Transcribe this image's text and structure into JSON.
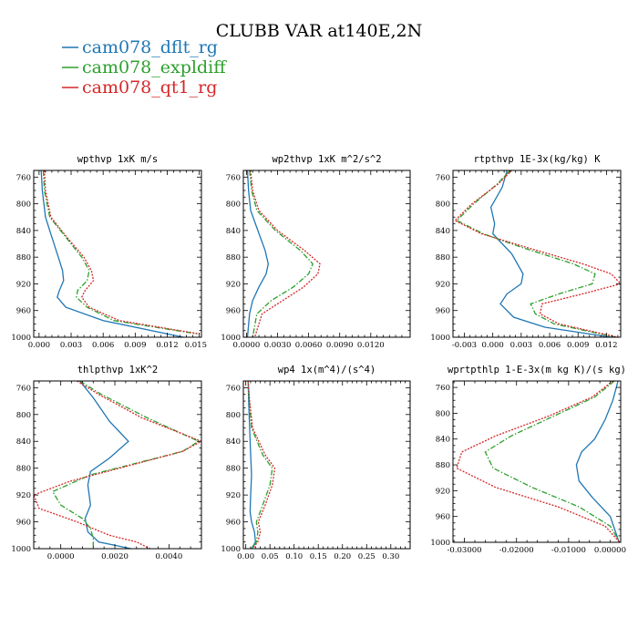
{
  "figure": {
    "title": "CLUBB VAR at140E,2N",
    "legend": [
      {
        "label": "cam078_dflt_rg",
        "color": "#1f77b4",
        "dash": "solid"
      },
      {
        "label": "cam078_expldiff",
        "color": "#2ca02c",
        "dash": "dashdot"
      },
      {
        "label": "cam078_qt1_rg",
        "color": "#d62728",
        "dash": "dotted"
      }
    ]
  },
  "chart_data": [
    {
      "type": "line",
      "title": "wpthvp  1xK m/s",
      "xlim": [
        -0.0005,
        0.0152
      ],
      "ylim": [
        1000,
        750
      ],
      "xticks": [
        "0.000",
        "0.003",
        "0.006",
        "0.009",
        "0.012",
        "0.015"
      ],
      "xtick_values": [
        0,
        0.003,
        0.006,
        0.009,
        0.012,
        0.015
      ],
      "yticks": [
        "760",
        "800",
        "840",
        "880",
        "920",
        "960",
        "1000"
      ],
      "ytick_values": [
        760,
        800,
        840,
        880,
        920,
        960,
        1000
      ],
      "series": [
        {
          "name": "cam078_dflt_rg",
          "x": [
            0.0002,
            0.0003,
            0.0006,
            0.0012,
            0.0018,
            0.0022,
            0.0023,
            0.0019,
            0.0017,
            0.0025,
            0.006,
            0.0135
          ],
          "y": [
            750,
            780,
            820,
            850,
            880,
            900,
            915,
            930,
            940,
            955,
            975,
            1000
          ]
        },
        {
          "name": "cam078_expldiff",
          "x": [
            0.0004,
            0.0005,
            0.001,
            0.0025,
            0.004,
            0.0047,
            0.0045,
            0.0036,
            0.0035,
            0.0045,
            0.007,
            0.0148
          ],
          "y": [
            750,
            780,
            820,
            850,
            880,
            900,
            915,
            930,
            940,
            955,
            975,
            995
          ]
        },
        {
          "name": "cam078_qt1_rg",
          "x": [
            0.0005,
            0.0006,
            0.0011,
            0.0026,
            0.0042,
            0.0049,
            0.0051,
            0.0043,
            0.004,
            0.0047,
            0.0075,
            0.015
          ],
          "y": [
            750,
            780,
            820,
            850,
            880,
            900,
            915,
            930,
            940,
            955,
            975,
            995
          ]
        }
      ]
    },
    {
      "type": "line",
      "title": "wp2thvp  1xK m^2/s^2",
      "xlim": [
        -0.0003,
        0.0158
      ],
      "ylim": [
        1000,
        750
      ],
      "xticks": [
        "0.0000",
        "0.0030",
        "0.0060",
        "0.0090",
        "0.0120"
      ],
      "xtick_values": [
        0,
        0.003,
        0.006,
        0.009,
        0.012
      ],
      "yticks": [
        "760",
        "800",
        "840",
        "880",
        "920",
        "960",
        "1000"
      ],
      "ytick_values": [
        760,
        800,
        840,
        880,
        920,
        960,
        1000
      ],
      "series": [
        {
          "name": "cam078_dflt_rg",
          "x": [
            0.0001,
            0.0002,
            0.0004,
            0.0011,
            0.0018,
            0.0021,
            0.0019,
            0.0012,
            0.0006,
            0.0003,
            0.0001
          ],
          "y": [
            750,
            780,
            810,
            840,
            870,
            890,
            905,
            925,
            945,
            965,
            1000
          ]
        },
        {
          "name": "cam078_expldiff",
          "x": [
            0.0003,
            0.0005,
            0.001,
            0.0028,
            0.0052,
            0.0064,
            0.006,
            0.0045,
            0.0024,
            0.001,
            0.0006
          ],
          "y": [
            750,
            780,
            810,
            840,
            870,
            890,
            905,
            925,
            945,
            965,
            1000
          ]
        },
        {
          "name": "cam078_qt1_rg",
          "x": [
            0.0004,
            0.0006,
            0.0012,
            0.003,
            0.0056,
            0.0071,
            0.0069,
            0.0055,
            0.0035,
            0.0015,
            0.0008
          ],
          "y": [
            750,
            780,
            810,
            840,
            870,
            890,
            905,
            925,
            945,
            965,
            1000
          ]
        }
      ]
    },
    {
      "type": "line",
      "title": "rtpthvp  1E-3x(kg/kg) K",
      "xlim": [
        -0.0042,
        0.0135
      ],
      "ylim": [
        1000,
        750
      ],
      "xticks": [
        "-0.003",
        "0.000",
        "0.003",
        "0.006",
        "0.009",
        "0.012"
      ],
      "xtick_values": [
        -0.003,
        0,
        0.003,
        0.006,
        0.009,
        0.012
      ],
      "yticks": [
        "760",
        "800",
        "840",
        "880",
        "920",
        "960",
        "1000"
      ],
      "ytick_values": [
        760,
        800,
        840,
        880,
        920,
        960,
        1000
      ],
      "series": [
        {
          "name": "cam078_dflt_rg",
          "x": [
            0.0015,
            0.001,
            -0.0002,
            0.0002,
            0.0,
            0.002,
            0.0032,
            0.003,
            0.0015,
            0.0008,
            0.0022,
            0.0055,
            0.0125
          ],
          "y": [
            750,
            775,
            805,
            830,
            845,
            875,
            905,
            920,
            935,
            950,
            970,
            985,
            1000
          ]
        },
        {
          "name": "cam078_expldiff",
          "x": [
            0.0018,
            0.0005,
            -0.002,
            -0.0038,
            -0.001,
            0.003,
            0.0085,
            0.0108,
            0.0105,
            0.007,
            0.004,
            0.0045,
            0.0065,
            0.013
          ],
          "y": [
            750,
            770,
            800,
            825,
            845,
            865,
            890,
            905,
            920,
            935,
            950,
            965,
            980,
            1000
          ]
        },
        {
          "name": "cam078_qt1_rg",
          "x": [
            0.002,
            0.0006,
            -0.0022,
            -0.004,
            -0.0012,
            0.0035,
            0.0095,
            0.0125,
            0.0135,
            0.0095,
            0.0052,
            0.005,
            0.007,
            0.0132
          ],
          "y": [
            750,
            770,
            800,
            825,
            845,
            865,
            890,
            905,
            920,
            935,
            950,
            965,
            980,
            1000
          ]
        }
      ]
    },
    {
      "type": "line",
      "title": "thlpthvp  1xK^2",
      "xlim": [
        -0.001,
        0.0052
      ],
      "ylim": [
        1000,
        750
      ],
      "xticks": [
        "0.0000",
        "0.0020",
        "0.0040"
      ],
      "xtick_values": [
        0,
        0.002,
        0.004
      ],
      "yticks": [
        "760",
        "800",
        "840",
        "880",
        "920",
        "960",
        "1000"
      ],
      "ytick_values": [
        760,
        800,
        840,
        880,
        920,
        960,
        1000
      ],
      "series": [
        {
          "name": "cam078_dflt_rg",
          "x": [
            0.0007,
            0.0012,
            0.0018,
            0.0025,
            0.0018,
            0.0011,
            0.001,
            0.0011,
            0.0009,
            0.001,
            0.0014,
            0.0026
          ],
          "y": [
            750,
            775,
            810,
            840,
            865,
            885,
            905,
            935,
            955,
            975,
            990,
            1000
          ]
        },
        {
          "name": "cam078_expldiff",
          "x": [
            0.0007,
            0.0015,
            0.0032,
            0.0051,
            0.0045,
            0.0011,
            -0.0003,
            0.0,
            0.0008,
            0.0011,
            0.0012,
            0.0012
          ],
          "y": [
            750,
            770,
            805,
            840,
            855,
            890,
            915,
            935,
            955,
            970,
            985,
            1000
          ]
        },
        {
          "name": "cam078_qt1_rg",
          "x": [
            0.0006,
            0.0014,
            0.003,
            0.0052,
            0.0045,
            0.0003,
            -0.001,
            -0.0008,
            0.0006,
            0.0018,
            0.0028,
            0.0033
          ],
          "y": [
            750,
            770,
            805,
            840,
            855,
            900,
            920,
            940,
            960,
            980,
            990,
            1000
          ]
        }
      ]
    },
    {
      "type": "line",
      "title": "wp4   1x(m^4)/(s^4)",
      "xlim": [
        -0.005,
        0.34
      ],
      "ylim": [
        1000,
        750
      ],
      "xticks": [
        "0.00",
        "0.05",
        "0.10",
        "0.15",
        "0.20",
        "0.25",
        "0.30"
      ],
      "xtick_values": [
        0,
        0.05,
        0.1,
        0.15,
        0.2,
        0.25,
        0.3
      ],
      "yticks": [
        "760",
        "800",
        "840",
        "880",
        "920",
        "960",
        "1000"
      ],
      "ytick_values": [
        760,
        800,
        840,
        880,
        920,
        960,
        1000
      ],
      "series": [
        {
          "name": "cam078_dflt_rg",
          "x": [
            0.005,
            0.006,
            0.008,
            0.01,
            0.012,
            0.01,
            0.009,
            0.012,
            0.018,
            0.02,
            0.012
          ],
          "y": [
            750,
            780,
            820,
            860,
            890,
            920,
            945,
            960,
            975,
            990,
            1000
          ]
        },
        {
          "name": "cam078_expldiff",
          "x": [
            0.005,
            0.007,
            0.012,
            0.035,
            0.055,
            0.05,
            0.035,
            0.022,
            0.025,
            0.022,
            0.012
          ],
          "y": [
            750,
            780,
            820,
            860,
            880,
            905,
            935,
            960,
            975,
            990,
            1000
          ]
        },
        {
          "name": "cam078_qt1_rg",
          "x": [
            0.005,
            0.008,
            0.014,
            0.04,
            0.06,
            0.055,
            0.04,
            0.026,
            0.03,
            0.025,
            0.014
          ],
          "y": [
            750,
            780,
            820,
            860,
            880,
            905,
            935,
            960,
            975,
            990,
            1000
          ]
        }
      ]
    },
    {
      "type": "line",
      "title": "wprtpthlp  1-E-3x(m kg K)/(s kg)",
      "xlim": [
        -0.0322,
        0.0
      ],
      "ylim": [
        1000,
        750
      ],
      "xticks": [
        "-0.03000",
        "-0.02000",
        "-0.01000",
        "0.00000"
      ],
      "xtick_values": [
        -0.03,
        -0.02,
        -0.01,
        0
      ],
      "yticks": [
        "760",
        "800",
        "840",
        "880",
        "920",
        "960",
        "1000"
      ],
      "ytick_values": [
        760,
        800,
        840,
        880,
        920,
        960,
        1000
      ],
      "series": [
        {
          "name": "cam078_dflt_rg",
          "x": [
            -0.0005,
            -0.0015,
            -0.003,
            -0.005,
            -0.0075,
            -0.0085,
            -0.008,
            -0.0055,
            -0.002,
            -0.0003
          ],
          "y": [
            750,
            780,
            810,
            840,
            860,
            880,
            905,
            930,
            960,
            1000
          ]
        },
        {
          "name": "cam078_expldiff",
          "x": [
            -0.0012,
            -0.005,
            -0.013,
            -0.021,
            -0.026,
            -0.0245,
            -0.017,
            -0.008,
            -0.002,
            -0.0002
          ],
          "y": [
            750,
            775,
            805,
            835,
            860,
            885,
            915,
            945,
            975,
            1000
          ]
        },
        {
          "name": "cam078_qt1_rg",
          "x": [
            -0.0015,
            -0.0055,
            -0.014,
            -0.024,
            -0.0305,
            -0.0315,
            -0.024,
            -0.012,
            -0.003,
            -0.0002
          ],
          "y": [
            750,
            775,
            805,
            835,
            860,
            885,
            915,
            945,
            975,
            1000
          ]
        }
      ]
    }
  ]
}
